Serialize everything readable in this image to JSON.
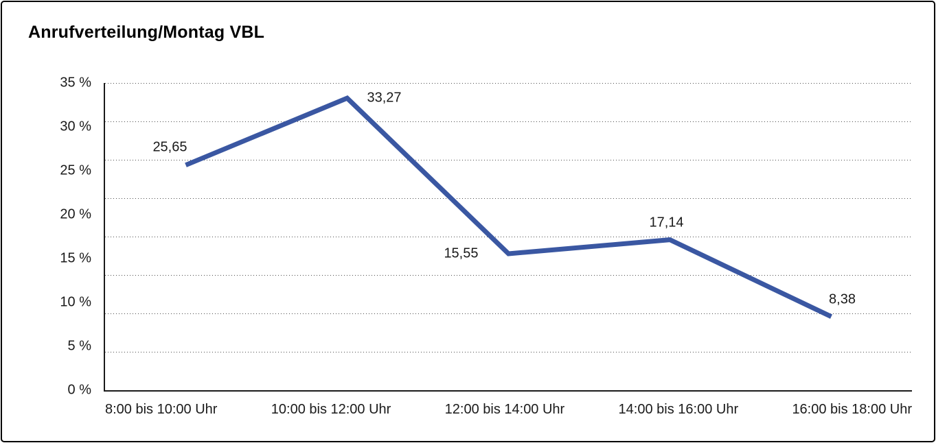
{
  "chart_data": {
    "type": "line",
    "title": "Anrufverteilung/Montag VBL",
    "categories": [
      "8:00 bis 10:00 Uhr",
      "10:00 bis 12:00 Uhr",
      "12:00 bis 14:00 Uhr",
      "14:00 bis 16:00 Uhr",
      "16:00 bis 18:00 Uhr"
    ],
    "values": [
      25.65,
      33.27,
      15.55,
      17.14,
      8.38
    ],
    "value_labels": [
      "25,65",
      "33,27",
      "15,55",
      "17,14",
      "8,38"
    ],
    "y_tick_labels": [
      "35 %",
      "30 %",
      "25 %",
      "20 %",
      "15 %",
      "10 %",
      "5 %",
      "0 %"
    ],
    "ylim": [
      0,
      35
    ],
    "xlabel": "",
    "ylabel": "",
    "legend": "none",
    "grid": "horizontal-dotted",
    "gridline_intervals": 8,
    "line_color": "#3A57A2",
    "axis_color": "#1a1a1a",
    "text_color": "#1a1a1a",
    "background_color": "#ffffff"
  }
}
